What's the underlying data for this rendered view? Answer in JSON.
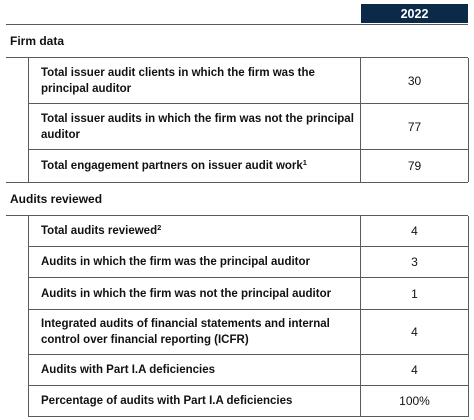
{
  "header": {
    "year": "2022"
  },
  "sections": [
    {
      "title": "Firm data",
      "rows": [
        {
          "label": "Total issuer audit clients in which the firm was the principal auditor",
          "sup": "",
          "value": "30"
        },
        {
          "label": "Total issuer audits in which the firm was not the principal auditor",
          "sup": "",
          "value": "77"
        },
        {
          "label": "Total engagement partners on issuer audit work",
          "sup": "1",
          "value": "79"
        }
      ]
    },
    {
      "title": "Audits reviewed",
      "rows": [
        {
          "label": "Total audits reviewed",
          "sup": "2",
          "value": "4"
        },
        {
          "label": "Audits in which the firm was the principal auditor",
          "sup": "",
          "value": "3"
        },
        {
          "label": "Audits in which the firm was not the principal auditor",
          "sup": "",
          "value": "1"
        },
        {
          "label": "Integrated audits of financial statements and internal control over financial reporting (ICFR)",
          "sup": "",
          "value": "4"
        },
        {
          "label": "Audits with Part I.A deficiencies",
          "sup": "",
          "value": "4"
        },
        {
          "label": "Percentage of audits with Part I.A deficiencies",
          "sup": "",
          "value": "100%"
        }
      ]
    }
  ]
}
